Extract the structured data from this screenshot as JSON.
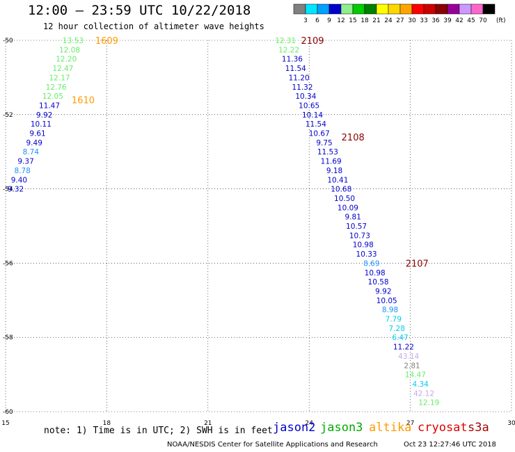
{
  "header": {
    "title": "12:00 – 23:59 UTC 10/22/2018",
    "subtitle": "12 hour collection of altimeter wave heights"
  },
  "colorbar": {
    "labels": [
      "3",
      "6",
      "9",
      "12",
      "15",
      "18",
      "21",
      "24",
      "27",
      "30",
      "33",
      "36",
      "39",
      "42",
      "45",
      "70"
    ],
    "unit": "(ft)",
    "colors": [
      "#808080",
      "#00e5ff",
      "#00a0ff",
      "#0000cd",
      "#90ee90",
      "#00cc00",
      "#008000",
      "#ffff00",
      "#ffd700",
      "#ffa500",
      "#ff0000",
      "#cc0000",
      "#8b0000",
      "#990099",
      "#cc99ff",
      "#ff66cc",
      "#000000"
    ]
  },
  "footer": {
    "note": "note: 1) Time is in UTC; 2) SWH is in feet",
    "credit": "NOAA/NESDIS Center for Satellite Applications and Research",
    "timestamp": "Oct 23 12:27:46 UTC 2018"
  },
  "satellites": [
    {
      "name": "jason2",
      "color": "#0000cc"
    },
    {
      "name": "jason3",
      "color": "#00aa00"
    },
    {
      "name": "altika",
      "color": "#ff9900"
    },
    {
      "name": "cryosat",
      "color": "#dd0000"
    },
    {
      "name": "s3a",
      "color": "#aa0000"
    }
  ],
  "chart_data": {
    "type": "scatter",
    "xlim": [
      15,
      30
    ],
    "ylim": [
      -60,
      -50
    ],
    "x_ticks": [
      15,
      18,
      21,
      24,
      27,
      30
    ],
    "y_ticks": [
      -50,
      -52,
      -54,
      -56,
      -58,
      -60
    ],
    "grid": true,
    "track_labels": [
      {
        "text": "1609",
        "x": 18.0,
        "y": -50.0,
        "color": "#ff9900"
      },
      {
        "text": "1610",
        "x": 17.3,
        "y": -51.6,
        "color": "#ff9900"
      },
      {
        "text": "2109",
        "x": 24.1,
        "y": -50.0,
        "color": "#8b0000"
      },
      {
        "text": "2108",
        "x": 25.3,
        "y": -52.6,
        "color": "#8b0000"
      },
      {
        "text": "2107",
        "x": 27.2,
        "y": -56.0,
        "color": "#8b0000"
      }
    ],
    "points": [
      {
        "x": 17.0,
        "y": -50.0,
        "v": "13.53",
        "color": "#66ee66"
      },
      {
        "x": 16.9,
        "y": -50.25,
        "v": "12.08",
        "color": "#66ee66"
      },
      {
        "x": 16.8,
        "y": -50.5,
        "v": "12.20",
        "color": "#66ee66"
      },
      {
        "x": 16.7,
        "y": -50.75,
        "v": "12.47",
        "color": "#66ee66"
      },
      {
        "x": 16.6,
        "y": -51.0,
        "v": "12.17",
        "color": "#66ee66"
      },
      {
        "x": 16.5,
        "y": -51.25,
        "v": "12.76",
        "color": "#66ee66"
      },
      {
        "x": 16.4,
        "y": -51.5,
        "v": "12.05",
        "color": "#66ee66"
      },
      {
        "x": 16.3,
        "y": -51.75,
        "v": "11.47",
        "color": "#0000cc"
      },
      {
        "x": 16.15,
        "y": -52.0,
        "v": "9.92",
        "color": "#0000cc"
      },
      {
        "x": 16.05,
        "y": -52.25,
        "v": "10.11",
        "color": "#0000cc"
      },
      {
        "x": 15.95,
        "y": -52.5,
        "v": "9.61",
        "color": "#0000cc"
      },
      {
        "x": 15.85,
        "y": -52.75,
        "v": "9.49",
        "color": "#0000cc"
      },
      {
        "x": 15.75,
        "y": -53.0,
        "v": "8.74",
        "color": "#1e90ff"
      },
      {
        "x": 15.6,
        "y": -53.25,
        "v": "9.37",
        "color": "#0000cc"
      },
      {
        "x": 15.5,
        "y": -53.5,
        "v": "8.78",
        "color": "#1e90ff"
      },
      {
        "x": 15.4,
        "y": -53.75,
        "v": "9.40",
        "color": "#0000cc"
      },
      {
        "x": 15.3,
        "y": -54.0,
        "v": "9.32",
        "color": "#0000cc"
      },
      {
        "x": 23.3,
        "y": -50.0,
        "v": "12.31",
        "color": "#66ee66"
      },
      {
        "x": 23.4,
        "y": -50.25,
        "v": "12.22",
        "color": "#66ee66"
      },
      {
        "x": 23.5,
        "y": -50.5,
        "v": "11.36",
        "color": "#0000cc"
      },
      {
        "x": 23.6,
        "y": -50.75,
        "v": "11.54",
        "color": "#0000cc"
      },
      {
        "x": 23.7,
        "y": -51.0,
        "v": "11.20",
        "color": "#0000cc"
      },
      {
        "x": 23.8,
        "y": -51.25,
        "v": "11.32",
        "color": "#0000cc"
      },
      {
        "x": 23.9,
        "y": -51.5,
        "v": "10.34",
        "color": "#0000cc"
      },
      {
        "x": 24.0,
        "y": -51.75,
        "v": "10.65",
        "color": "#0000cc"
      },
      {
        "x": 24.1,
        "y": -52.0,
        "v": "10.14",
        "color": "#0000cc"
      },
      {
        "x": 24.2,
        "y": -52.25,
        "v": "11.54",
        "color": "#0000cc"
      },
      {
        "x": 24.3,
        "y": -52.5,
        "v": "10.67",
        "color": "#0000cc"
      },
      {
        "x": 24.45,
        "y": -52.75,
        "v": "9.75",
        "color": "#0000cc"
      },
      {
        "x": 24.55,
        "y": -53.0,
        "v": "11.53",
        "color": "#0000cc"
      },
      {
        "x": 24.65,
        "y": -53.25,
        "v": "11.69",
        "color": "#0000cc"
      },
      {
        "x": 24.75,
        "y": -53.5,
        "v": "9.18",
        "color": "#0000cc"
      },
      {
        "x": 24.85,
        "y": -53.75,
        "v": "10.41",
        "color": "#0000cc"
      },
      {
        "x": 24.95,
        "y": -54.0,
        "v": "10.68",
        "color": "#0000cc"
      },
      {
        "x": 25.05,
        "y": -54.25,
        "v": "10.50",
        "color": "#0000cc"
      },
      {
        "x": 25.15,
        "y": -54.5,
        "v": "10.09",
        "color": "#0000cc"
      },
      {
        "x": 25.3,
        "y": -54.75,
        "v": "9.81",
        "color": "#0000cc"
      },
      {
        "x": 25.4,
        "y": -55.0,
        "v": "10.57",
        "color": "#0000cc"
      },
      {
        "x": 25.5,
        "y": -55.25,
        "v": "10.73",
        "color": "#0000cc"
      },
      {
        "x": 25.6,
        "y": -55.5,
        "v": "10.98",
        "color": "#0000cc"
      },
      {
        "x": 25.7,
        "y": -55.75,
        "v": "10.33",
        "color": "#0000cc"
      },
      {
        "x": 25.85,
        "y": -56.0,
        "v": "8.69",
        "color": "#1e90ff"
      },
      {
        "x": 25.95,
        "y": -56.25,
        "v": "10.98",
        "color": "#0000cc"
      },
      {
        "x": 26.05,
        "y": -56.5,
        "v": "10.58",
        "color": "#0000cc"
      },
      {
        "x": 26.2,
        "y": -56.75,
        "v": "9.92",
        "color": "#0000cc"
      },
      {
        "x": 26.3,
        "y": -57.0,
        "v": "10.05",
        "color": "#0000cc"
      },
      {
        "x": 26.4,
        "y": -57.25,
        "v": "8.98",
        "color": "#1e90ff"
      },
      {
        "x": 26.5,
        "y": -57.5,
        "v": "7.79",
        "color": "#00ccee"
      },
      {
        "x": 26.6,
        "y": -57.75,
        "v": "7.28",
        "color": "#00ccee"
      },
      {
        "x": 26.7,
        "y": -58.0,
        "v": "6.47",
        "color": "#00ccee"
      },
      {
        "x": 26.8,
        "y": -58.25,
        "v": "11.22",
        "color": "#0000cc"
      },
      {
        "x": 26.95,
        "y": -58.5,
        "v": "43.14",
        "color": "#c8a8e8"
      },
      {
        "x": 27.05,
        "y": -58.75,
        "v": "2.81",
        "color": "#808080"
      },
      {
        "x": 27.15,
        "y": -59.0,
        "v": "14.47",
        "color": "#66ee66"
      },
      {
        "x": 27.3,
        "y": -59.25,
        "v": "4.34",
        "color": "#00ccee"
      },
      {
        "x": 27.4,
        "y": -59.5,
        "v": "42.12",
        "color": "#c8a8e8"
      },
      {
        "x": 27.55,
        "y": -59.75,
        "v": "12.19",
        "color": "#66ee66"
      }
    ]
  }
}
